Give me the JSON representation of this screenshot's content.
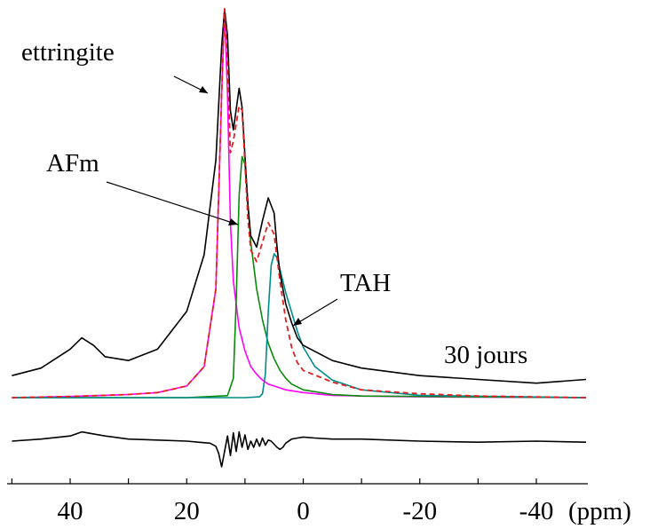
{
  "chart_data": {
    "type": "line",
    "title": "",
    "xlabel": "(ppm)",
    "ylabel": "",
    "xlim": [
      50,
      -50
    ],
    "x_reversed": true,
    "x_ticks": [
      40,
      20,
      0,
      -20,
      -40
    ],
    "x_tick_labels": [
      "40",
      "20",
      "0",
      "-20",
      "-40"
    ],
    "grid": false,
    "legend": "none",
    "annotations": [
      {
        "text": "ettringite",
        "target_ppm": 14.9
      },
      {
        "text": "AFm",
        "target_ppm": 10.7
      },
      {
        "text": "TAH",
        "target_ppm": 1.3
      },
      {
        "text": "30 jours"
      }
    ],
    "series": [
      {
        "role": "experimental",
        "color": "#000000",
        "style": "solid",
        "x": [
          50,
          45,
          40,
          38,
          36,
          34,
          30,
          25,
          20,
          17,
          15,
          14,
          13.5,
          13,
          12.5,
          12,
          11,
          10.5,
          10,
          9.5,
          9,
          8,
          7,
          6,
          5,
          4.5,
          4,
          3,
          2,
          1,
          0,
          -5,
          -10,
          -20,
          -30,
          -40,
          -50
        ],
        "y": [
          0.03,
          0.05,
          0.1,
          0.13,
          0.11,
          0.08,
          0.07,
          0.1,
          0.2,
          0.35,
          0.6,
          0.9,
          1.0,
          0.93,
          0.73,
          0.68,
          0.79,
          0.74,
          0.61,
          0.48,
          0.4,
          0.37,
          0.44,
          0.5,
          0.46,
          0.37,
          0.3,
          0.22,
          0.17,
          0.13,
          0.11,
          0.07,
          0.05,
          0.03,
          0.02,
          0.01,
          0.02
        ]
      },
      {
        "role": "fit-total",
        "color": "#e02020",
        "style": "dashed",
        "x": [
          50,
          40,
          30,
          25,
          20,
          17,
          15,
          14,
          13.5,
          13,
          12.5,
          12,
          11,
          10.5,
          10,
          9.5,
          9,
          8,
          7,
          6,
          5,
          4.5,
          4,
          3,
          2,
          1,
          0,
          -5,
          -10,
          -20,
          -30,
          -50
        ],
        "y": [
          0,
          0.003,
          0.008,
          0.013,
          0.03,
          0.08,
          0.28,
          0.78,
          1.0,
          0.86,
          0.63,
          0.66,
          0.75,
          0.74,
          0.6,
          0.46,
          0.38,
          0.35,
          0.4,
          0.45,
          0.42,
          0.36,
          0.3,
          0.2,
          0.13,
          0.09,
          0.07,
          0.04,
          0.02,
          0.01,
          0.004,
          0
        ]
      },
      {
        "role": "ettringite",
        "color": "#ff00ff",
        "style": "solid",
        "x": [
          50,
          40,
          30,
          25,
          20,
          17,
          15,
          14,
          13.5,
          13,
          12.5,
          12,
          11,
          10,
          9,
          8,
          7,
          6,
          5,
          3,
          0,
          -5,
          -10,
          -20,
          -50
        ],
        "y": [
          0,
          0.003,
          0.008,
          0.013,
          0.03,
          0.08,
          0.28,
          0.78,
          1.0,
          0.78,
          0.45,
          0.3,
          0.18,
          0.12,
          0.08,
          0.06,
          0.045,
          0.035,
          0.03,
          0.02,
          0.013,
          0.006,
          0.004,
          0.002,
          0
        ]
      },
      {
        "role": "AFm",
        "color": "#0a8a0a",
        "style": "solid",
        "x": [
          50,
          20,
          13,
          12,
          11.5,
          11,
          10.5,
          10,
          9.5,
          9,
          8,
          7,
          6,
          5,
          4,
          3,
          2,
          0,
          -5,
          -10,
          -50
        ],
        "y": [
          0,
          0,
          0.005,
          0.05,
          0.25,
          0.52,
          0.62,
          0.6,
          0.5,
          0.4,
          0.28,
          0.2,
          0.14,
          0.1,
          0.07,
          0.05,
          0.035,
          0.02,
          0.008,
          0.004,
          0
        ]
      },
      {
        "role": "TAH",
        "color": "#008b8b",
        "style": "solid",
        "x": [
          50,
          10,
          7.5,
          7,
          6.5,
          6,
          5.5,
          5,
          4.5,
          4,
          3,
          2,
          1,
          0,
          -2,
          -5,
          -10,
          -20,
          -50
        ],
        "y": [
          0,
          0,
          0.002,
          0.01,
          0.06,
          0.22,
          0.34,
          0.37,
          0.36,
          0.33,
          0.27,
          0.22,
          0.17,
          0.13,
          0.08,
          0.045,
          0.02,
          0.006,
          0
        ]
      },
      {
        "role": "residual",
        "color": "#000000",
        "style": "solid",
        "x": [
          50,
          45,
          40,
          38,
          36,
          34,
          30,
          25,
          20,
          18,
          16,
          15,
          14.5,
          14,
          13.5,
          13,
          12.5,
          12,
          11.5,
          11,
          10.5,
          10,
          9.5,
          9,
          8.5,
          8,
          7.5,
          7,
          6.5,
          6,
          5.5,
          5,
          4.5,
          4,
          3.5,
          3,
          2,
          1,
          0,
          -2,
          -5,
          -10,
          -20,
          -30,
          -40,
          -50
        ],
        "y": [
          0.0,
          0.02,
          0.05,
          0.09,
          0.07,
          0.05,
          0.02,
          0.01,
          0.0,
          -0.01,
          -0.02,
          -0.05,
          -0.12,
          -0.25,
          -0.1,
          0.05,
          -0.14,
          0.08,
          -0.1,
          0.09,
          -0.06,
          0.06,
          -0.08,
          0.0,
          -0.06,
          0.02,
          -0.05,
          0.03,
          -0.04,
          0.01,
          0.0,
          -0.03,
          -0.06,
          -0.08,
          -0.06,
          -0.02,
          0.02,
          0.03,
          0.04,
          0.03,
          0.02,
          0.02,
          0.0,
          -0.01,
          0.0,
          -0.01
        ]
      }
    ]
  }
}
